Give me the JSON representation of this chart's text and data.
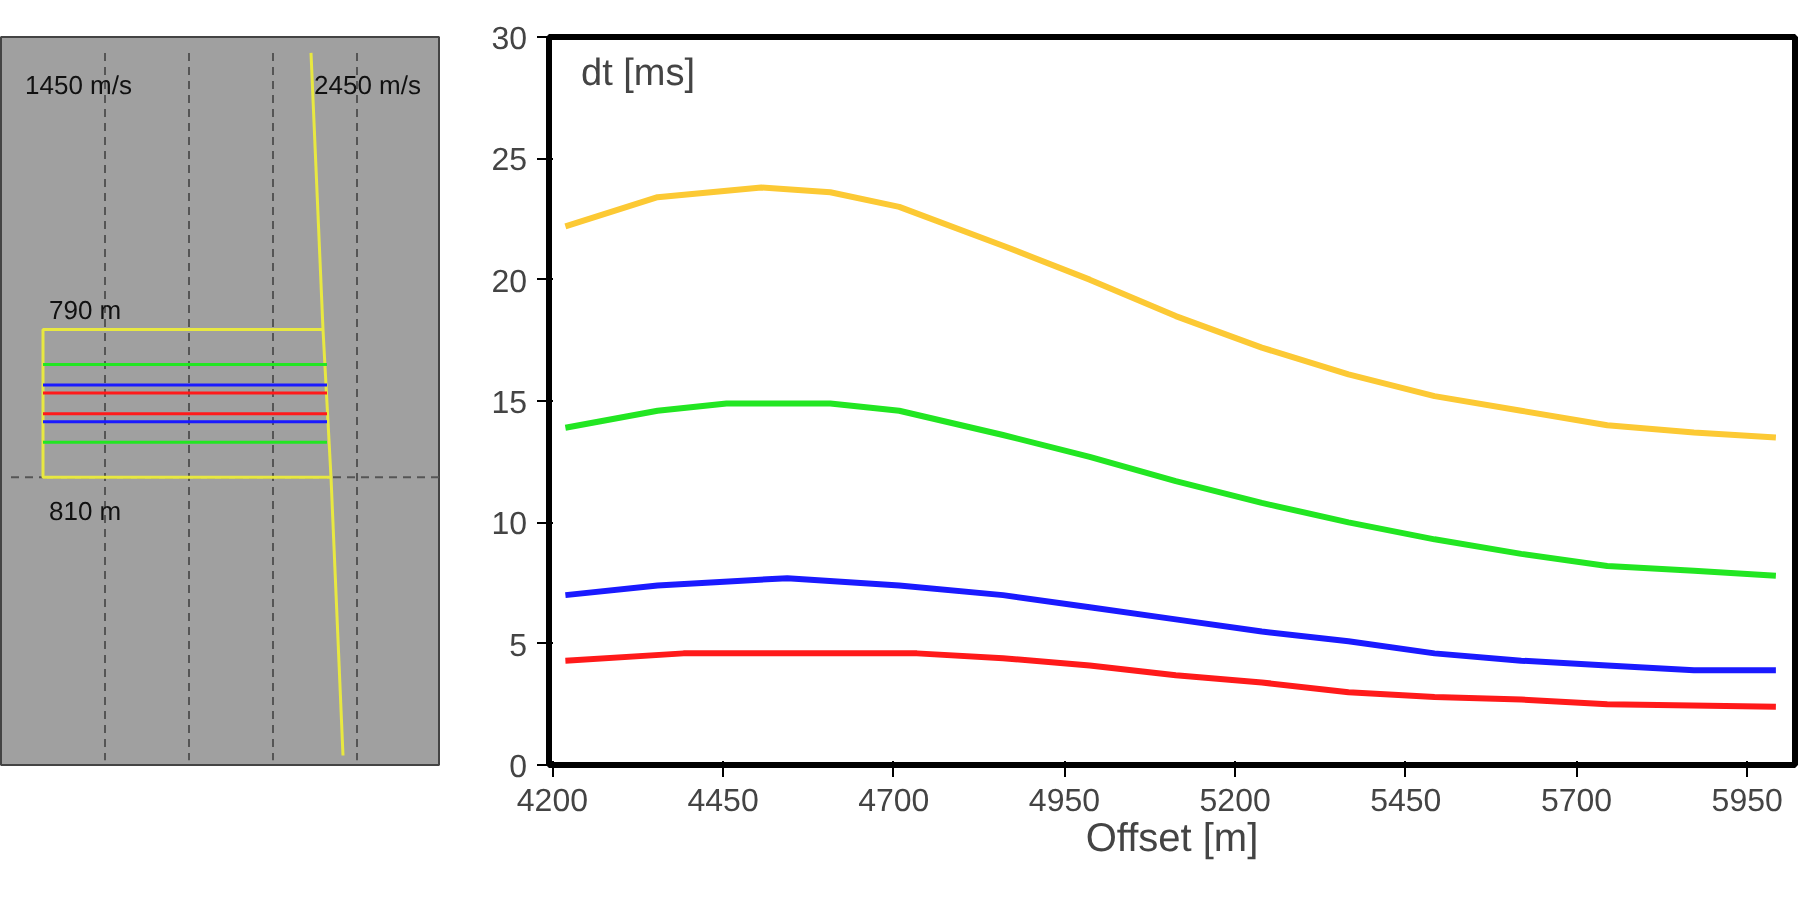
{
  "chart_data": [
    {
      "type": "other",
      "annotations": [
        "1450 m/s",
        "2450 m/s",
        "790 m",
        "810 m"
      ]
    },
    {
      "type": "line",
      "ylabel": "dt [ms]",
      "xlabel": "Offset [m]",
      "xlim": [
        4195,
        6020
      ],
      "ylim": [
        0,
        30
      ],
      "xticks": [
        4200,
        4450,
        4700,
        4950,
        5200,
        5450,
        5700,
        5950
      ],
      "yticks": [
        0,
        5,
        10,
        15,
        20,
        25,
        30
      ],
      "series": [
        {
          "color": "#fcc934",
          "x": [
            4219,
            4354,
            4506,
            4607,
            4708,
            4860,
            4987,
            5113,
            5239,
            5366,
            5492,
            5619,
            5745,
            5872,
            5992
          ],
          "values": [
            22.2,
            23.4,
            23.8,
            23.6,
            23.0,
            21.4,
            20.0,
            18.5,
            17.2,
            16.1,
            15.2,
            14.6,
            14.0,
            13.7,
            13.5
          ]
        },
        {
          "color": "#22e622",
          "x": [
            4219,
            4354,
            4455,
            4607,
            4708,
            4860,
            4987,
            5113,
            5239,
            5366,
            5492,
            5619,
            5745,
            5872,
            5992
          ],
          "values": [
            13.9,
            14.6,
            14.9,
            14.9,
            14.6,
            13.6,
            12.7,
            11.7,
            10.8,
            10.0,
            9.3,
            8.7,
            8.2,
            8.0,
            7.8
          ]
        },
        {
          "color": "#1a1aff",
          "x": [
            4219,
            4354,
            4544,
            4708,
            4860,
            4987,
            5113,
            5239,
            5366,
            5492,
            5619,
            5745,
            5872,
            5992
          ],
          "values": [
            7.0,
            7.4,
            7.7,
            7.4,
            7.0,
            6.5,
            6.0,
            5.5,
            5.1,
            4.6,
            4.3,
            4.1,
            3.9,
            3.9
          ]
        },
        {
          "color": "#ff1a1a",
          "x": [
            4219,
            4392,
            4734,
            4860,
            4987,
            5113,
            5239,
            5366,
            5492,
            5619,
            5745,
            5992
          ],
          "values": [
            4.3,
            4.6,
            4.6,
            4.4,
            4.1,
            3.7,
            3.4,
            3.0,
            2.8,
            2.7,
            2.5,
            2.4
          ]
        }
      ]
    }
  ]
}
